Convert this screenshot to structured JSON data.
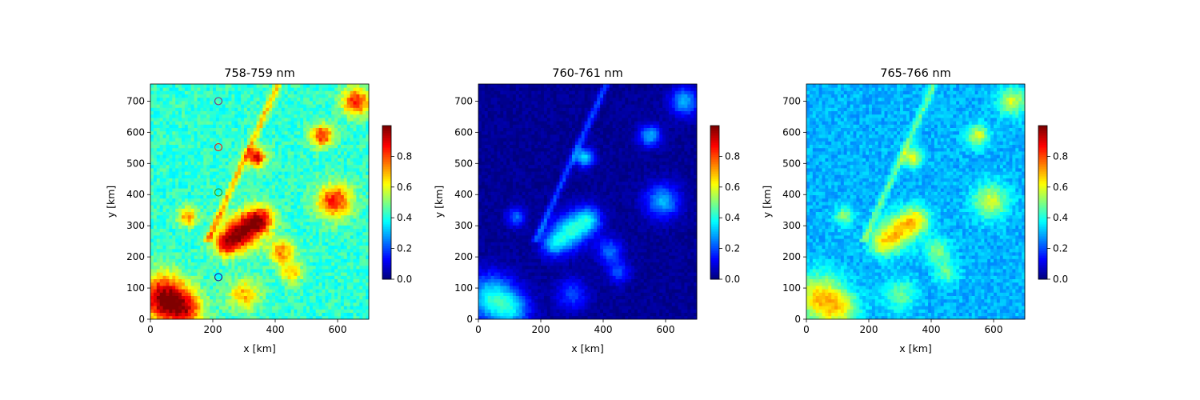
{
  "chart_data": [
    {
      "type": "heatmap",
      "title": "758-759 nm",
      "xlabel": "x [km]",
      "ylabel": "y [km]",
      "xlim": [
        0,
        700
      ],
      "ylim": [
        0,
        755
      ],
      "xticks": [
        "0",
        "200",
        "400",
        "600"
      ],
      "yticks": [
        "0",
        "100",
        "200",
        "300",
        "400",
        "500",
        "600",
        "700"
      ],
      "colormap": "jet",
      "colorbar": {
        "range": [
          0,
          1
        ],
        "ticks": [
          "0.0",
          "0.2",
          "0.4",
          "0.6",
          "0.8"
        ]
      },
      "background_value": 0.42,
      "markers": [
        {
          "x": 218,
          "y": 700,
          "color": "#7f3f7f"
        },
        {
          "x": 218,
          "y": 552,
          "color": "#d62728"
        },
        {
          "x": 218,
          "y": 407,
          "color": "#2ca02c"
        },
        {
          "x": 218,
          "y": 135,
          "color": "#1f1f9f"
        }
      ]
    },
    {
      "type": "heatmap",
      "title": "760-761 nm",
      "xlabel": "x [km]",
      "ylabel": "y [km]",
      "xlim": [
        0,
        700
      ],
      "ylim": [
        0,
        755
      ],
      "xticks": [
        "0",
        "200",
        "400",
        "600"
      ],
      "yticks": [
        "0",
        "100",
        "200",
        "300",
        "400",
        "500",
        "600",
        "700"
      ],
      "colormap": "jet",
      "colorbar": {
        "range": [
          0,
          1
        ],
        "ticks": [
          "0.0",
          "0.2",
          "0.4",
          "0.6",
          "0.8"
        ]
      },
      "background_value": 0.02
    },
    {
      "type": "heatmap",
      "title": "765-766 nm",
      "xlabel": "x [km]",
      "ylabel": "y [km]",
      "xlim": [
        0,
        700
      ],
      "ylim": [
        0,
        755
      ],
      "xticks": [
        "0",
        "200",
        "400",
        "600"
      ],
      "yticks": [
        "0",
        "100",
        "200",
        "300",
        "400",
        "500",
        "600",
        "700"
      ],
      "colormap": "jet",
      "colorbar": {
        "range": [
          0,
          1
        ],
        "ticks": [
          "0.0",
          "0.2",
          "0.4",
          "0.6",
          "0.8"
        ]
      },
      "background_value": 0.3
    }
  ]
}
